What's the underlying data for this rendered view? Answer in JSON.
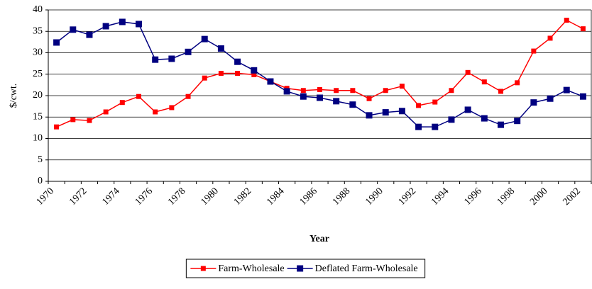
{
  "chart_data": {
    "type": "line",
    "x_label": "Year",
    "y_label": "$/cwt.",
    "categories": [
      "1970",
      null,
      "1972",
      null,
      "1974",
      null,
      "1976",
      null,
      "1978",
      null,
      "1980",
      null,
      "1982",
      null,
      "1984",
      null,
      "1986",
      null,
      "1988",
      null,
      "1990",
      null,
      "1992",
      null,
      "1994",
      null,
      "1996",
      null,
      "1998",
      null,
      "2000",
      null,
      "2002"
    ],
    "series": [
      {
        "name": "Farm-Wholesale",
        "color": "#ff0000",
        "marker": "square",
        "values": [
          12.7,
          14.4,
          14.2,
          16.2,
          18.4,
          19.8,
          16.2,
          17.2,
          19.8,
          24.1,
          25.2,
          25.2,
          24.9,
          23.3,
          21.7,
          21.2,
          21.4,
          21.2,
          21.2,
          19.3,
          21.2,
          22.2,
          17.7,
          18.5,
          21.2,
          25.4,
          23.2,
          21.0,
          23.0,
          30.4,
          33.4,
          37.6,
          35.6
        ]
      },
      {
        "name": "Deflated Farm-Wholesale",
        "color": "#000080",
        "marker": "square",
        "values": [
          32.4,
          35.4,
          34.2,
          36.2,
          37.2,
          36.7,
          28.4,
          28.6,
          30.2,
          33.2,
          31.0,
          27.9,
          25.9,
          23.3,
          21.0,
          19.8,
          19.5,
          18.7,
          17.9,
          15.4,
          16.1,
          16.4,
          12.7,
          12.7,
          14.4,
          16.7,
          14.7,
          13.2,
          14.1,
          18.4,
          19.3,
          21.3,
          19.8
        ]
      }
    ],
    "ylim": [
      0,
      40
    ],
    "yticks": [
      0,
      5,
      10,
      15,
      20,
      25,
      30,
      35,
      40
    ],
    "grid": true,
    "legend": "bottom"
  }
}
